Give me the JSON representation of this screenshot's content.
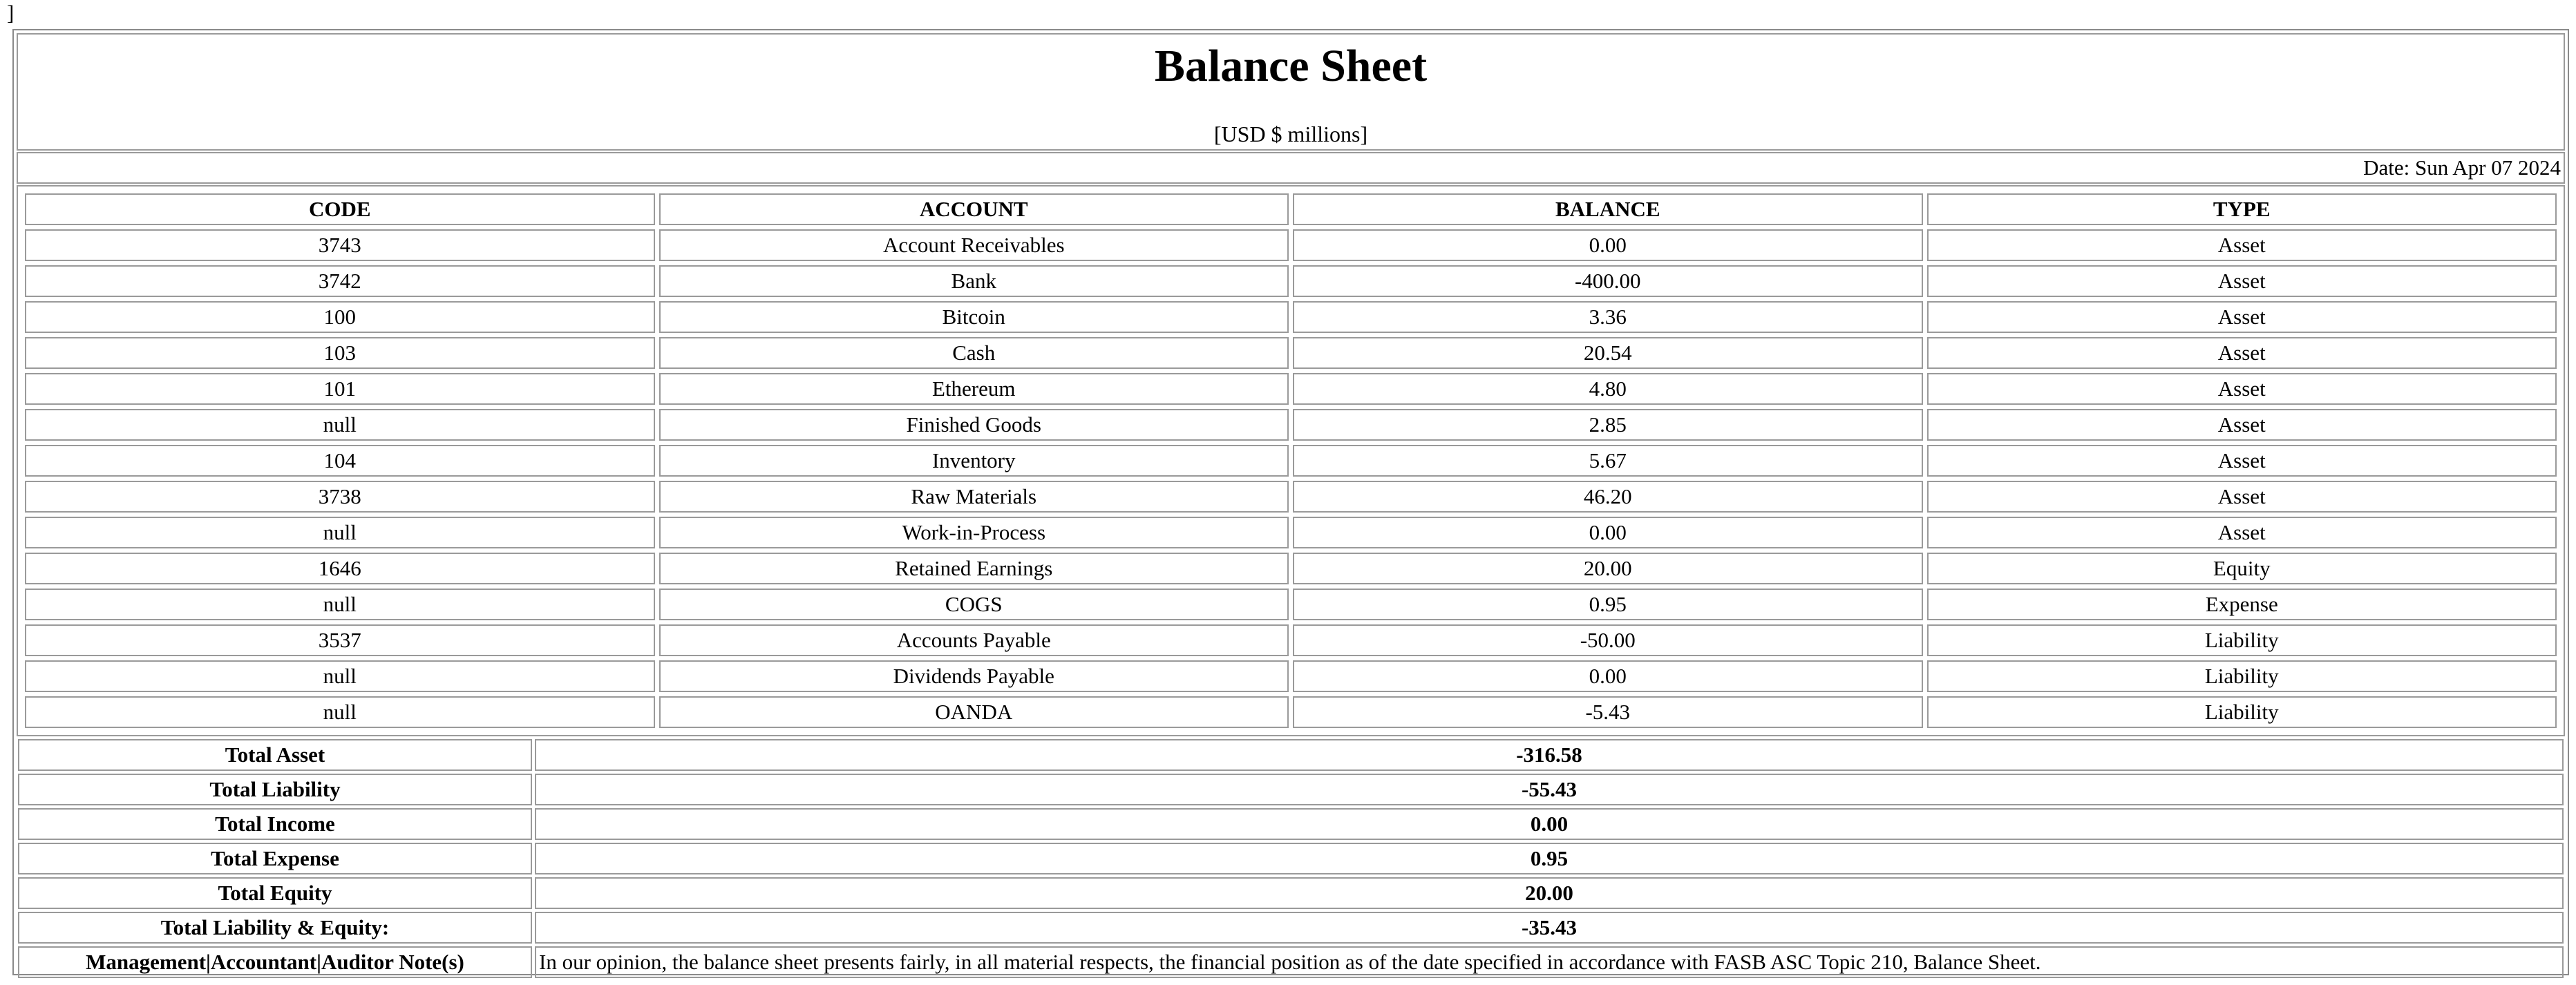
{
  "stray_char": "]",
  "title": "Balance Sheet",
  "subtitle": "[USD $ millions]",
  "date_label": "Date: Sun Apr 07 2024",
  "headers": [
    "CODE",
    "ACCOUNT",
    "BALANCE",
    "TYPE"
  ],
  "rows": [
    {
      "code": "3743",
      "account": "Account Receivables",
      "balance": "0.00",
      "type": "Asset"
    },
    {
      "code": "3742",
      "account": "Bank",
      "balance": "-400.00",
      "type": "Asset"
    },
    {
      "code": "100",
      "account": "Bitcoin",
      "balance": "3.36",
      "type": "Asset"
    },
    {
      "code": "103",
      "account": "Cash",
      "balance": "20.54",
      "type": "Asset"
    },
    {
      "code": "101",
      "account": "Ethereum",
      "balance": "4.80",
      "type": "Asset"
    },
    {
      "code": "null",
      "account": "Finished Goods",
      "balance": "2.85",
      "type": "Asset"
    },
    {
      "code": "104",
      "account": "Inventory",
      "balance": "5.67",
      "type": "Asset"
    },
    {
      "code": "3738",
      "account": "Raw Materials",
      "balance": "46.20",
      "type": "Asset"
    },
    {
      "code": "null",
      "account": "Work-in-Process",
      "balance": "0.00",
      "type": "Asset"
    },
    {
      "code": "1646",
      "account": "Retained Earnings",
      "balance": "20.00",
      "type": "Equity"
    },
    {
      "code": "null",
      "account": "COGS",
      "balance": "0.95",
      "type": "Expense"
    },
    {
      "code": "3537",
      "account": "Accounts Payable",
      "balance": "-50.00",
      "type": "Liability"
    },
    {
      "code": "null",
      "account": "Dividends Payable",
      "balance": "0.00",
      "type": "Liability"
    },
    {
      "code": "null",
      "account": "OANDA",
      "balance": "-5.43",
      "type": "Liability"
    }
  ],
  "totals": [
    {
      "label": "Total Asset",
      "value": "-316.58"
    },
    {
      "label": "Total Liability",
      "value": "-55.43"
    },
    {
      "label": "Total Income",
      "value": "0.00"
    },
    {
      "label": "Total Expense",
      "value": "0.95"
    },
    {
      "label": "Total Equity",
      "value": "20.00"
    },
    {
      "label": "Total Liability & Equity:",
      "value": "-35.43"
    }
  ],
  "note": {
    "label": "Management|Accountant|Auditor Note(s)",
    "text": "In our opinion, the balance sheet presents fairly, in all material respects, the financial position as of the date specified in accordance with FASB ASC Topic 210, Balance Sheet."
  }
}
